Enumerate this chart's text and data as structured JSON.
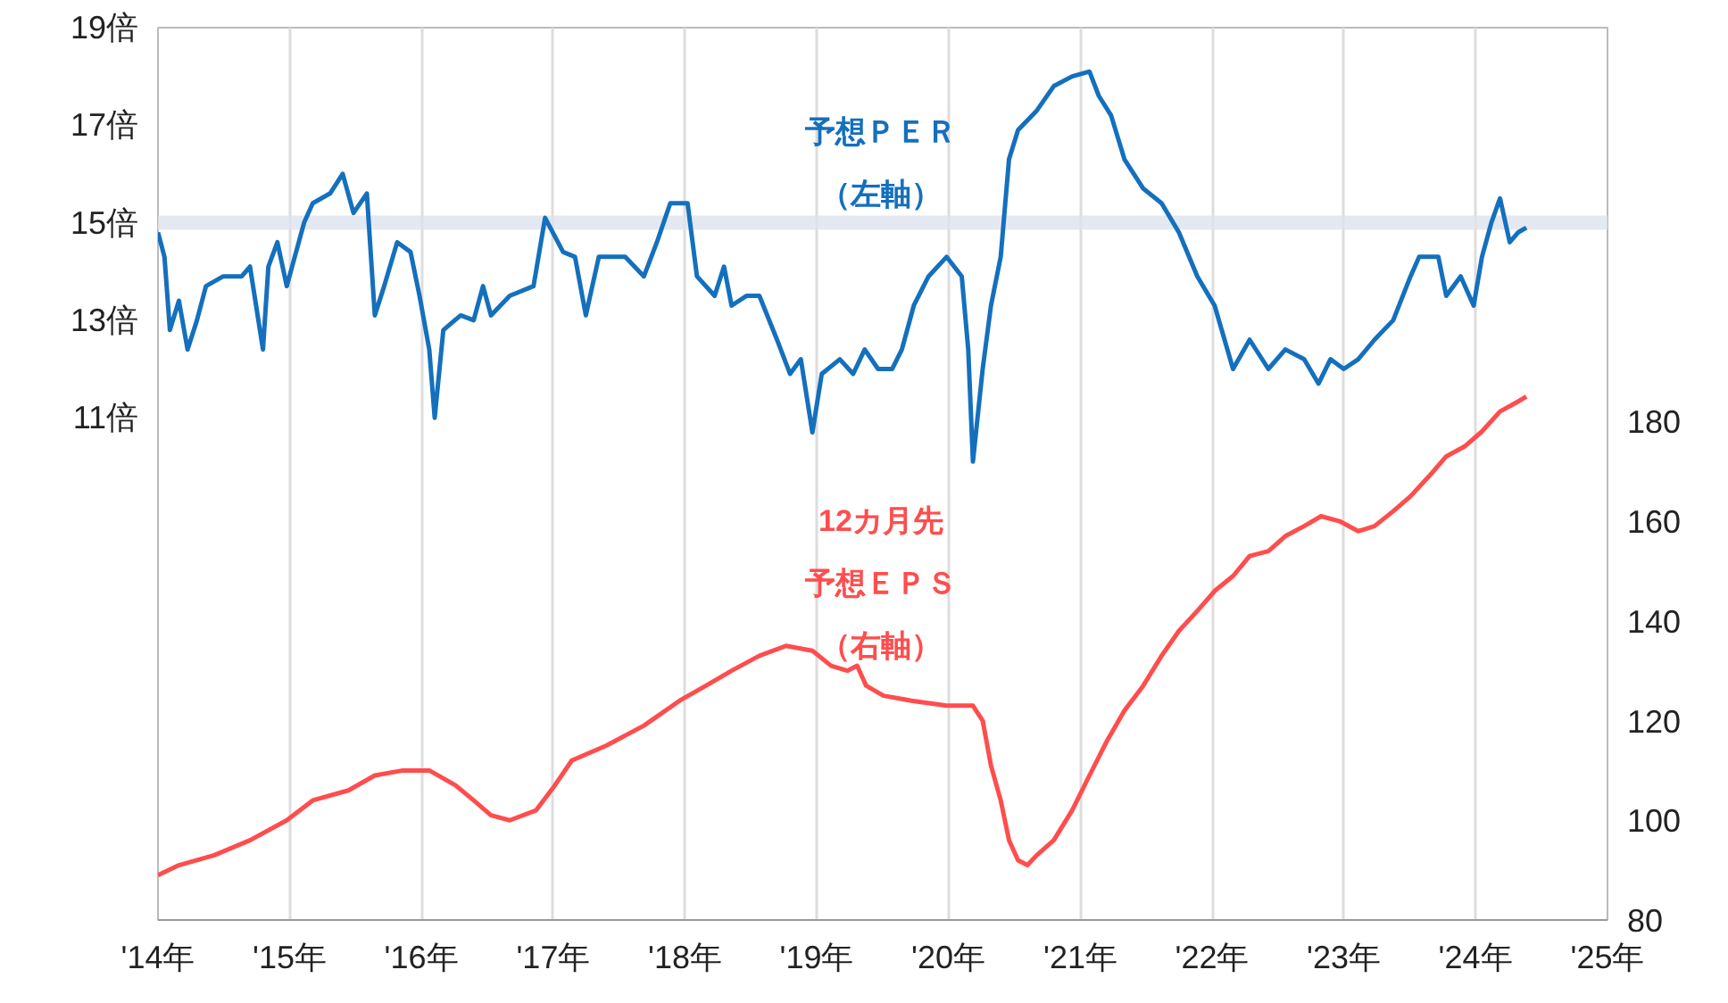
{
  "chart_data": {
    "type": "line",
    "xlim": [
      "2014",
      "2025"
    ],
    "xticks": [
      {
        "value": "2014",
        "label": "'14年"
      },
      {
        "value": "2015",
        "label": "'15年"
      },
      {
        "value": "2016",
        "label": "'16年"
      },
      {
        "value": "2017",
        "label": "'17年"
      },
      {
        "value": "2018",
        "label": "'18年"
      },
      {
        "value": "2019",
        "label": "'19年"
      },
      {
        "value": "2020",
        "label": "'20年"
      },
      {
        "value": "2021",
        "label": "'21年"
      },
      {
        "value": "2022",
        "label": "'22年"
      },
      {
        "value": "2023",
        "label": "'23年"
      },
      {
        "value": "2024",
        "label": "'24年"
      },
      {
        "value": "2025",
        "label": "'25年"
      }
    ],
    "ylim": [
      0.7,
      19
    ],
    "yticks": [
      {
        "value": 11,
        "label": "11倍"
      },
      {
        "value": 13,
        "label": "13倍"
      },
      {
        "value": 15,
        "label": "15倍"
      },
      {
        "value": 17,
        "label": "17倍"
      },
      {
        "value": 19,
        "label": "19倍"
      }
    ],
    "y2lim": [
      80,
      259
    ],
    "y2ticks": [
      80,
      100,
      120,
      140,
      160,
      180
    ],
    "grid": "x",
    "marker": "none",
    "line_style": "solid",
    "ref_lines": [
      {
        "axis": "y",
        "value": 15,
        "color": "#dde3ee"
      }
    ],
    "series": [
      {
        "name": "予想ＰＥＲ（左軸）",
        "color": "#1470bd",
        "axis": "y",
        "x": [
          "2014-01-01",
          "2014-01-19",
          "2014-02-03",
          "2014-02-28",
          "2014-03-24",
          "2014-04-19",
          "2014-05-14",
          "2014-07-01",
          "2014-08-21",
          "2014-09-13",
          "2014-10-19",
          "2014-11-03",
          "2014-11-28",
          "2014-12-24",
          "2015-02-10",
          "2015-03-06",
          "2015-04-23",
          "2015-05-28",
          "2015-06-27",
          "2015-08-03",
          "2015-08-25",
          "2015-09-20",
          "2015-10-26",
          "2015-12-02",
          "2015-12-27",
          "2016-01-23",
          "2016-02-07",
          "2016-03-02",
          "2016-04-19",
          "2016-05-25",
          "2016-06-20",
          "2016-07-12",
          "2016-09-02",
          "2016-11-07",
          "2016-12-09",
          "2017-01-28",
          "2017-03-02",
          "2017-04-01",
          "2017-05-07",
          "2017-07-19",
          "2017-09-09",
          "2017-10-15",
          "2017-11-21",
          "2018-01-08",
          "2018-02-03",
          "2018-03-24",
          "2018-04-19",
          "2018-05-10",
          "2018-06-20",
          "2018-07-26",
          "2018-09-13",
          "2018-10-19",
          "2018-11-18",
          "2018-12-20",
          "2019-01-15",
          "2019-03-06",
          "2019-04-12",
          "2019-05-14",
          "2019-06-20",
          "2019-07-29",
          "2019-08-25",
          "2019-09-27",
          "2019-11-07",
          "2019-12-27",
          "2020-02-07",
          "2020-02-25",
          "2020-03-09",
          "2020-04-05",
          "2020-04-28",
          "2020-05-25",
          "2020-06-17",
          "2020-07-12",
          "2020-09-02",
          "2020-10-19",
          "2020-12-09",
          "2021-01-26",
          "2021-02-21",
          "2021-03-27",
          "2021-05-03",
          "2021-06-24",
          "2021-08-14",
          "2021-10-01",
          "2021-11-21",
          "2022-01-08",
          "2022-02-28",
          "2022-04-15",
          "2022-06-06",
          "2022-07-23",
          "2022-09-13",
          "2022-10-23",
          "2022-11-25",
          "2023-01-01",
          "2023-02-10",
          "2023-03-27",
          "2023-05-18",
          "2023-07-05",
          "2023-07-29",
          "2023-09-20",
          "2023-10-12",
          "2023-11-21",
          "2023-12-27",
          "2024-01-19",
          "2024-02-14",
          "2024-03-09",
          "2024-04-05",
          "2024-04-28",
          "2024-05-21"
        ],
        "values": [
          14.8,
          14.3,
          12.8,
          13.4,
          12.4,
          13.0,
          13.7,
          13.9,
          13.9,
          14.1,
          12.4,
          14.1,
          14.6,
          13.7,
          15.0,
          15.4,
          15.6,
          16.0,
          15.2,
          15.6,
          13.1,
          13.7,
          14.6,
          14.4,
          13.5,
          12.4,
          11.0,
          12.8,
          13.1,
          13.0,
          13.7,
          13.1,
          13.5,
          13.7,
          15.1,
          14.4,
          14.3,
          13.1,
          14.3,
          14.3,
          13.9,
          14.6,
          15.4,
          15.4,
          13.9,
          13.5,
          14.1,
          13.3,
          13.5,
          13.5,
          12.6,
          11.9,
          12.2,
          10.7,
          11.9,
          12.2,
          11.9,
          12.4,
          12.0,
          12.0,
          12.4,
          13.3,
          13.9,
          14.3,
          13.9,
          12.4,
          10.1,
          12.0,
          13.3,
          14.3,
          16.3,
          16.9,
          17.3,
          17.8,
          18.0,
          18.1,
          17.6,
          17.2,
          16.3,
          15.7,
          15.4,
          14.8,
          13.9,
          13.3,
          12.0,
          12.6,
          12.0,
          12.4,
          12.2,
          11.7,
          12.2,
          12.0,
          12.2,
          12.6,
          13.0,
          13.9,
          14.3,
          14.3,
          13.5,
          13.9,
          13.3,
          14.3,
          15.0,
          15.5,
          14.6,
          14.8,
          14.9
        ]
      },
      {
        "name": "12カ月先予想ＥＰＳ（右軸）",
        "color": "#ff4d4d",
        "axis": "y2",
        "x": [
          "2014-01-01",
          "2014-02-28",
          "2014-06-06",
          "2014-09-13",
          "2014-12-24",
          "2015-03-06",
          "2015-06-13",
          "2015-08-25",
          "2015-11-11",
          "2016-01-23",
          "2016-04-05",
          "2016-05-25",
          "2016-07-12",
          "2016-09-02",
          "2016-11-14",
          "2017-01-05",
          "2017-02-21",
          "2017-05-28",
          "2017-09-09",
          "2017-12-17",
          "2018-02-28",
          "2018-05-10",
          "2018-07-26",
          "2018-10-08",
          "2018-12-20",
          "2019-02-10",
          "2019-03-27",
          "2019-04-23",
          "2019-05-18",
          "2019-07-05",
          "2019-09-20",
          "2019-12-27",
          "2020-03-09",
          "2020-04-05",
          "2020-04-28",
          "2020-05-25",
          "2020-06-17",
          "2020-07-12",
          "2020-08-07",
          "2020-09-02",
          "2020-10-19",
          "2020-12-09",
          "2021-01-26",
          "2021-03-16",
          "2021-05-03",
          "2021-06-24",
          "2021-08-14",
          "2021-10-01",
          "2021-11-21",
          "2022-01-08",
          "2022-02-28",
          "2022-04-15",
          "2022-06-06",
          "2022-07-23",
          "2022-09-13",
          "2022-10-30",
          "2022-12-20",
          "2023-02-10",
          "2023-03-27",
          "2023-05-18",
          "2023-07-05",
          "2023-08-25",
          "2023-10-12",
          "2023-12-02",
          "2024-01-19",
          "2024-03-09",
          "2024-04-28",
          "2024-05-21"
        ],
        "values": [
          89,
          91,
          93,
          96,
          100,
          104,
          106,
          109,
          110,
          110,
          107,
          104,
          101,
          100,
          102,
          107,
          112,
          115,
          119,
          124,
          127,
          130,
          133,
          135,
          134,
          131,
          130,
          131,
          127,
          125,
          124,
          123,
          123,
          120,
          111,
          104,
          96,
          92,
          91,
          93,
          96,
          102,
          109,
          116,
          122,
          127,
          133,
          138,
          142,
          146,
          149,
          153,
          154,
          157,
          159,
          161,
          160,
          158,
          159,
          162,
          165,
          169,
          173,
          175,
          178,
          182,
          184,
          185
        ]
      }
    ]
  }
}
